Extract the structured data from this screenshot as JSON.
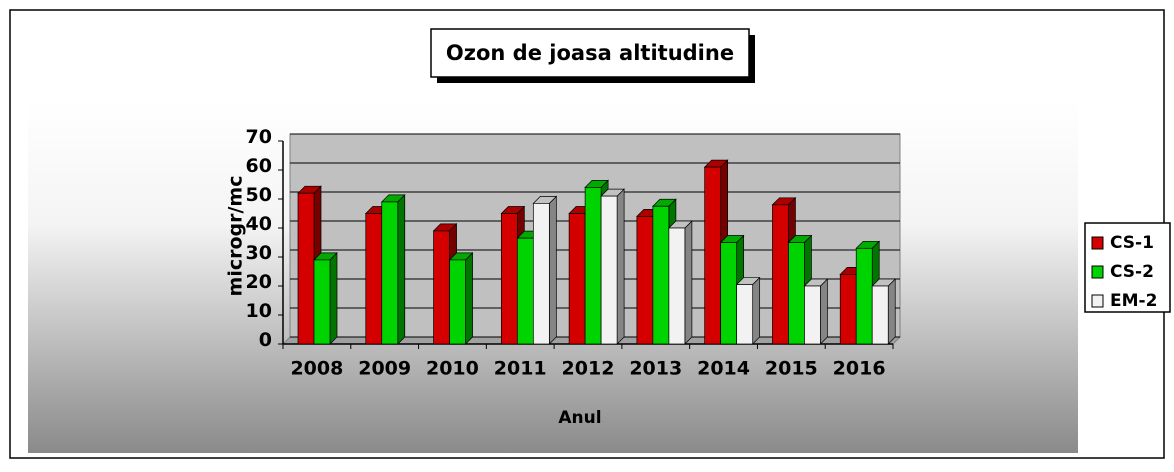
{
  "chart_data": {
    "type": "bar",
    "title": "Ozon de joasa altitudine",
    "x_label": "Anul",
    "y_label": "microgr/mc",
    "categories": [
      "2008",
      "2009",
      "2010",
      "2011",
      "2012",
      "2013",
      "2014",
      "2015",
      "2016"
    ],
    "series": [
      {
        "name": "CS-1",
        "color": "#d40000",
        "values": [
          52,
          45,
          39,
          45,
          45,
          44,
          61,
          48,
          24
        ]
      },
      {
        "name": "CS-2",
        "color": "#00d400",
        "values": [
          29,
          49,
          29,
          36.5,
          54,
          47.5,
          35,
          35,
          33
        ]
      },
      {
        "name": "EM-2",
        "color": "#f2f2f2",
        "values": [
          null,
          null,
          null,
          48.5,
          51,
          40,
          20.5,
          20,
          20
        ]
      }
    ],
    "ylim": [
      0,
      70
    ],
    "yticks": [
      0,
      10,
      20,
      30,
      40,
      50,
      60,
      70
    ],
    "grid": true,
    "legend": "right"
  }
}
